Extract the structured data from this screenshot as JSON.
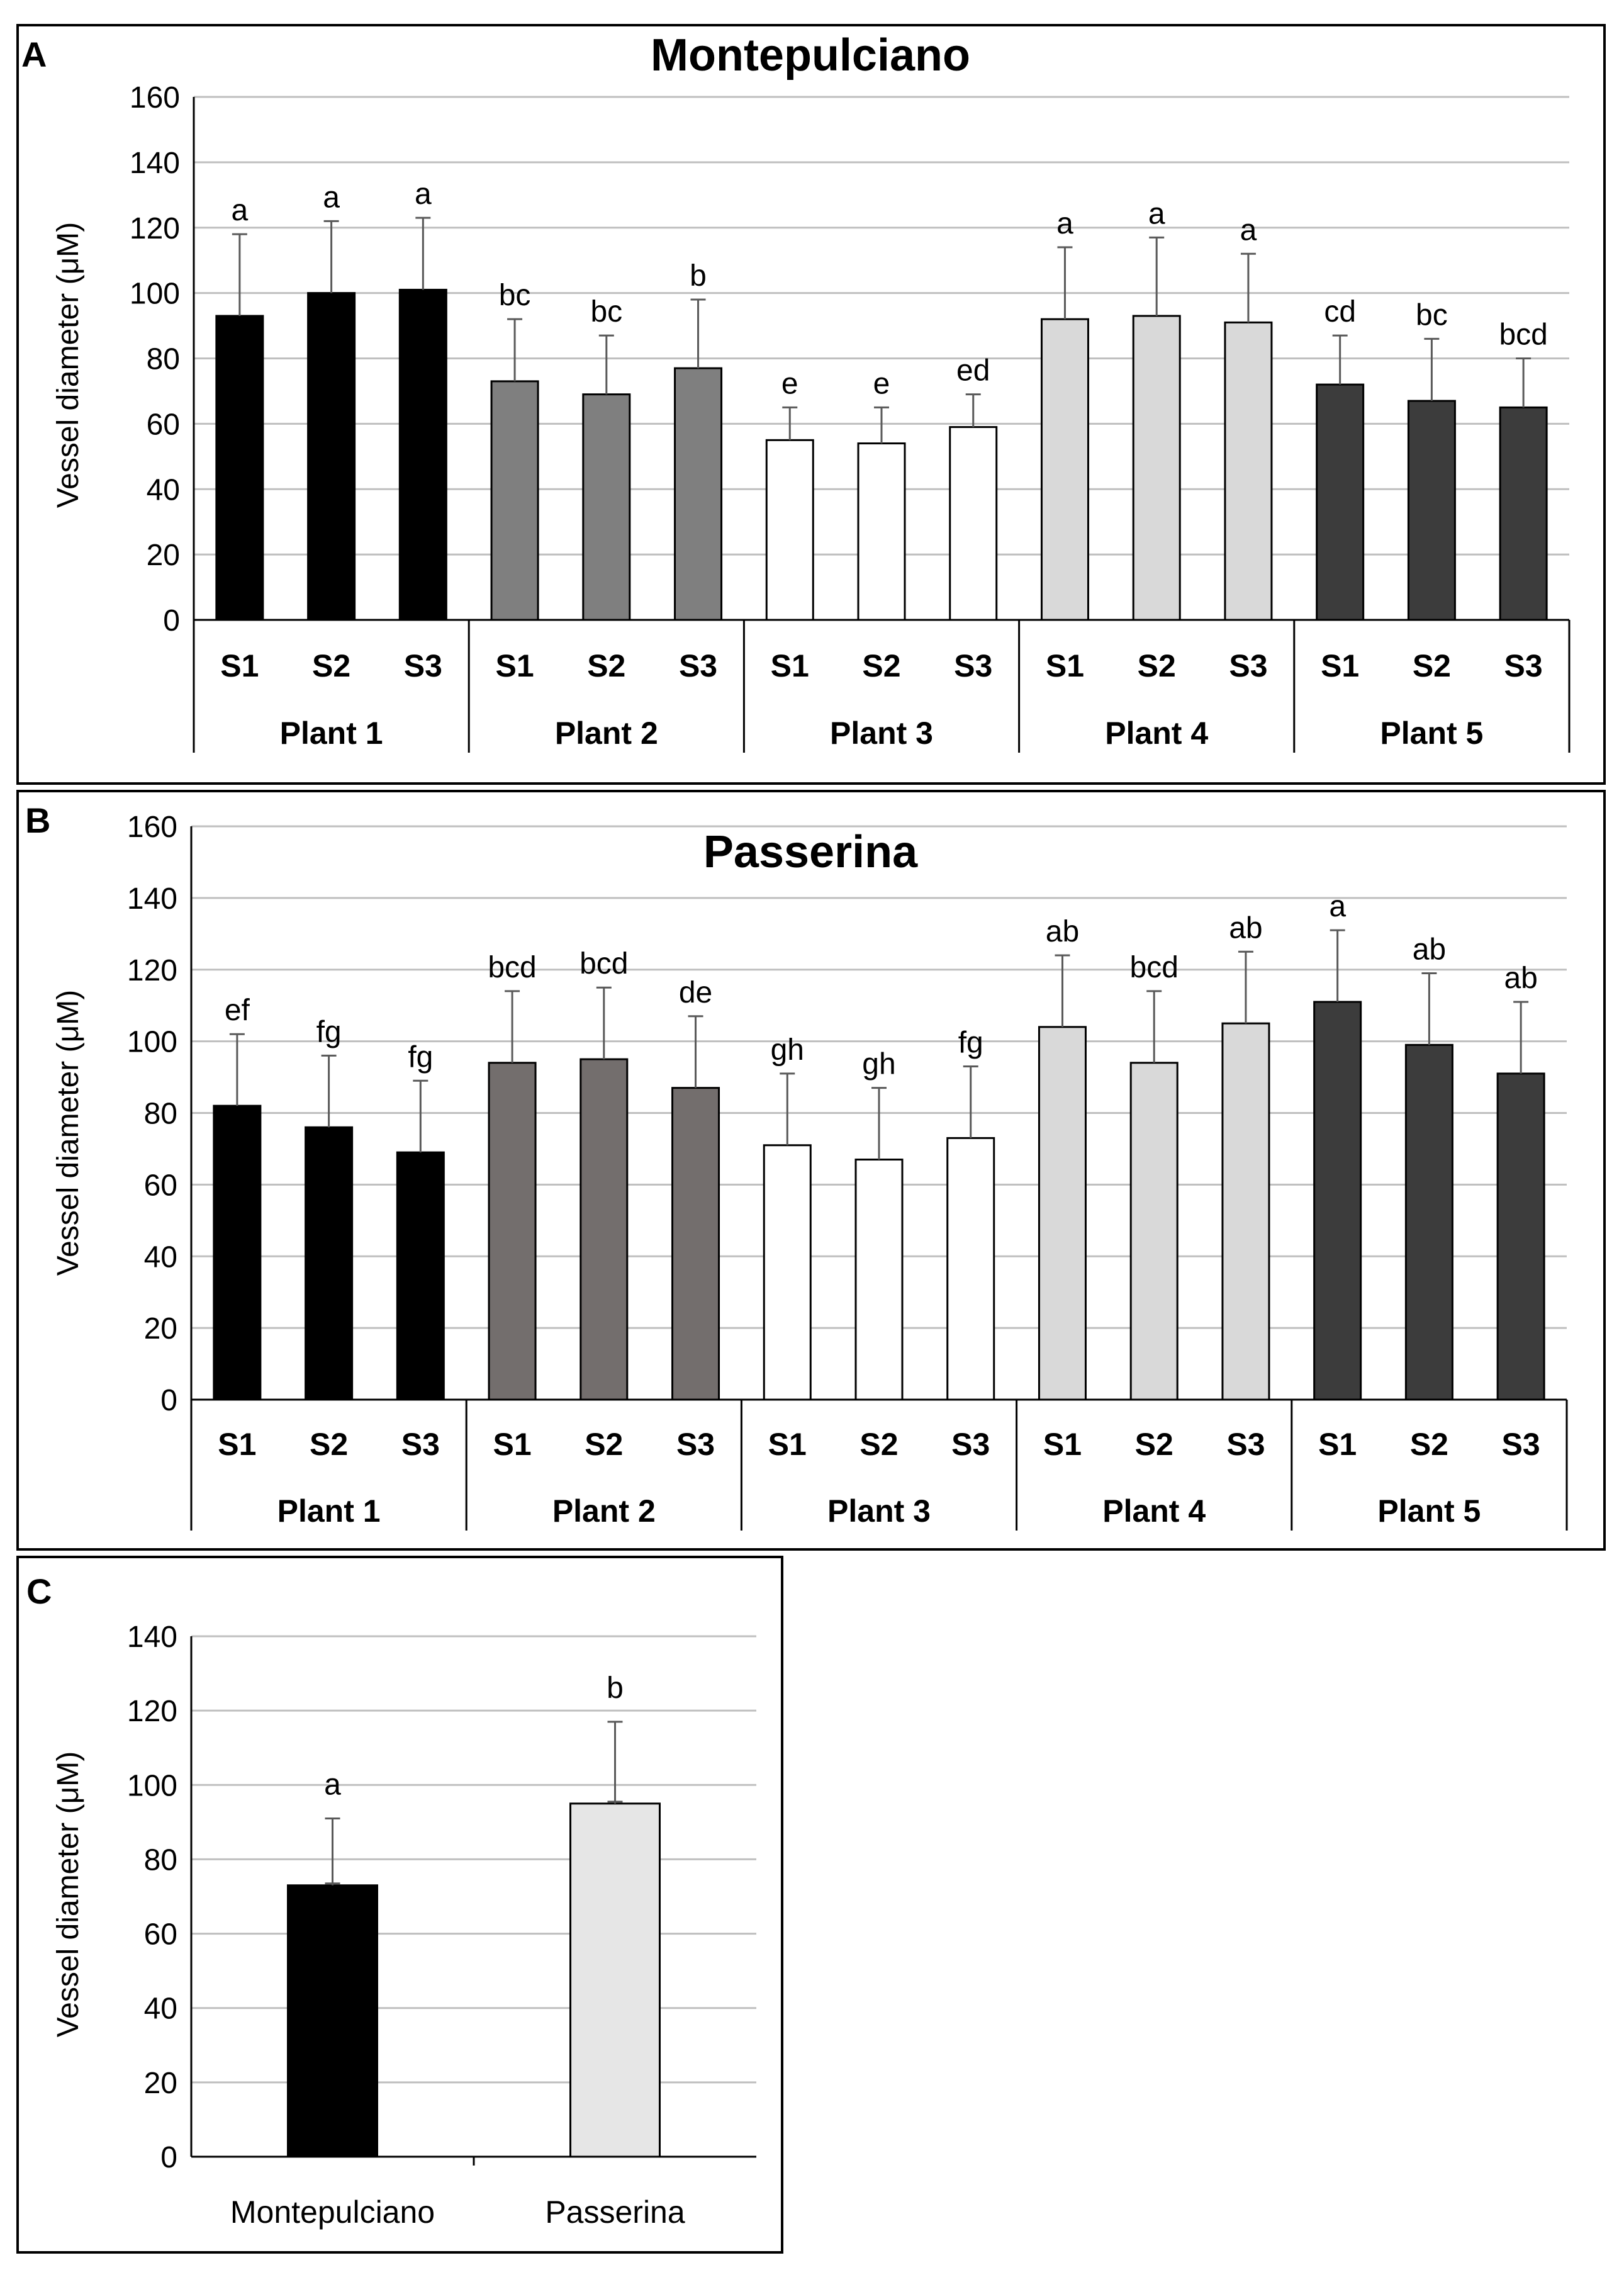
{
  "colors": {
    "plant1": "#000000",
    "plant2_A": "#7f7f7f",
    "plant2_B": "#736e6d",
    "plant3": "#ffffff",
    "plant4": "#d9d9d9",
    "plant5": "#3c3c3c",
    "montepulciano": "#000000",
    "passerina": "#e6e6e6"
  },
  "chart_data": [
    {
      "panel": "A",
      "type": "bar",
      "title": "Montepulciano",
      "ylabel": "Vessel diameter (μM)",
      "ylim": [
        0,
        160
      ],
      "yticks": [
        0,
        20,
        40,
        60,
        80,
        100,
        120,
        140,
        160
      ],
      "groups": [
        "Plant 1",
        "Plant 2",
        "Plant 3",
        "Plant 4",
        "Plant 5"
      ],
      "samples": [
        "S1",
        "S2",
        "S3"
      ],
      "values": [
        93,
        100,
        101,
        73,
        69,
        77,
        55,
        54,
        59,
        92,
        93,
        91,
        72,
        67,
        65
      ],
      "errors": [
        25,
        22,
        22,
        19,
        18,
        21,
        10,
        11,
        10,
        22,
        24,
        21,
        15,
        19,
        15
      ],
      "letters": [
        "a",
        "a",
        "a",
        "bc",
        "bc",
        "b",
        "e",
        "e",
        "ed",
        "a",
        "a",
        "a",
        "cd",
        "bc",
        "bcd"
      ]
    },
    {
      "panel": "B",
      "type": "bar",
      "title": "Passerina",
      "ylabel": "Vessel diameter (μM)",
      "ylim": [
        0,
        160
      ],
      "yticks": [
        0,
        20,
        40,
        60,
        80,
        100,
        120,
        140,
        160
      ],
      "groups": [
        "Plant 1",
        "Plant 2",
        "Plant 3",
        "Plant 4",
        "Plant 5"
      ],
      "samples": [
        "S1",
        "S2",
        "S3"
      ],
      "values": [
        82,
        76,
        69,
        94,
        95,
        87,
        71,
        67,
        73,
        104,
        94,
        105,
        111,
        99,
        91
      ],
      "errors": [
        20,
        20,
        20,
        20,
        20,
        20,
        20,
        20,
        20,
        20,
        20,
        20,
        20,
        20,
        20
      ],
      "letters": [
        "ef",
        "fg",
        "fg",
        "bcd",
        "bcd",
        "de",
        "gh",
        "gh",
        "fg",
        "ab",
        "bcd",
        "ab",
        "a",
        "ab",
        "ab"
      ]
    },
    {
      "panel": "C",
      "type": "bar",
      "title": "",
      "ylabel": "Vessel diameter (μM)",
      "ylim": [
        0,
        140
      ],
      "yticks": [
        0,
        20,
        40,
        60,
        80,
        100,
        120,
        140
      ],
      "categories": [
        "Montepulciano",
        "Passerina"
      ],
      "values": [
        73,
        95
      ],
      "errors": [
        18,
        22
      ],
      "letters": [
        "a",
        "b"
      ]
    }
  ]
}
